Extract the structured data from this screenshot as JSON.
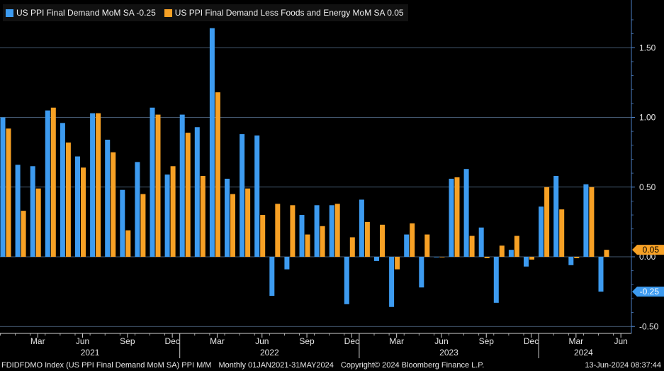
{
  "legend": {
    "series1": "US PPI Final Demand MoM SA -0.25",
    "series2": "US PPI Final Demand Less Foods and Energy MoM SA 0.05"
  },
  "footer": {
    "ticker": "FDIDFDMO Index (US PPI Final Demand MoM SA) PPI M/M",
    "range": "Monthly 01JAN2021-31MAY2024",
    "copyright": "Copyright© 2024 Bloomberg Finance L.P.",
    "date": "13-Jun-2024 08:37:44"
  },
  "colors": {
    "series1": "#3d9bf0",
    "series2": "#f7a125",
    "background": "#000000",
    "grid": "#6b8bb0",
    "axis": "#4c7fc4"
  },
  "chart_data": {
    "type": "bar",
    "x": [
      "Jan 2021",
      "Feb 2021",
      "Mar 2021",
      "Apr 2021",
      "May 2021",
      "Jun 2021",
      "Jul 2021",
      "Aug 2021",
      "Sep 2021",
      "Oct 2021",
      "Nov 2021",
      "Dec 2021",
      "Jan 2022",
      "Feb 2022",
      "Mar 2022",
      "Apr 2022",
      "May 2022",
      "Jun 2022",
      "Jul 2022",
      "Aug 2022",
      "Sep 2022",
      "Oct 2022",
      "Nov 2022",
      "Dec 2022",
      "Jan 2023",
      "Feb 2023",
      "Mar 2023",
      "Apr 2023",
      "May 2023",
      "Jun 2023",
      "Jul 2023",
      "Aug 2023",
      "Sep 2023",
      "Oct 2023",
      "Nov 2023",
      "Dec 2023",
      "Jan 2024",
      "Feb 2024",
      "Mar 2024",
      "Apr 2024",
      "May 2024"
    ],
    "series": [
      {
        "name": "US PPI Final Demand MoM SA",
        "last": "-0.25",
        "values": [
          1.0,
          0.66,
          0.65,
          1.05,
          0.96,
          0.72,
          1.03,
          0.84,
          0.48,
          0.68,
          1.07,
          0.59,
          1.02,
          0.93,
          1.64,
          0.56,
          0.88,
          0.87,
          -0.28,
          -0.09,
          0.3,
          0.37,
          0.37,
          -0.34,
          0.41,
          -0.03,
          -0.36,
          0.16,
          -0.22,
          0.0,
          0.56,
          0.63,
          0.21,
          -0.33,
          0.05,
          -0.07,
          0.36,
          0.58,
          -0.06,
          0.52,
          -0.25
        ]
      },
      {
        "name": "US PPI Final Demand Less Foods and Energy MoM SA",
        "last": "0.05",
        "values": [
          0.92,
          0.33,
          0.49,
          1.07,
          0.82,
          0.64,
          1.03,
          0.75,
          0.19,
          0.45,
          1.02,
          0.65,
          0.89,
          0.58,
          1.18,
          0.45,
          0.49,
          0.3,
          0.38,
          0.37,
          0.16,
          0.22,
          0.38,
          0.14,
          0.25,
          0.23,
          -0.09,
          0.24,
          0.16,
          0.0,
          0.57,
          0.15,
          -0.01,
          0.08,
          0.15,
          -0.02,
          0.5,
          0.34,
          -0.01,
          0.5,
          0.05
        ]
      }
    ],
    "y_ticks": [
      "1.50",
      "1.00",
      "0.50",
      "0.00",
      "-0.50"
    ],
    "y_tick_values": [
      1.5,
      1.0,
      0.5,
      0.0,
      -0.5
    ],
    "ylim": [
      -0.53,
      1.8
    ],
    "x_month_labels": [
      {
        "label": "Mar",
        "index": 2
      },
      {
        "label": "Jun",
        "index": 5
      },
      {
        "label": "Sep",
        "index": 8
      },
      {
        "label": "Dec",
        "index": 11
      },
      {
        "label": "Mar",
        "index": 14
      },
      {
        "label": "Jun",
        "index": 17
      },
      {
        "label": "Sep",
        "index": 20
      },
      {
        "label": "Dec",
        "index": 23
      },
      {
        "label": "Mar",
        "index": 26
      },
      {
        "label": "Jun",
        "index": 29
      },
      {
        "label": "Sep",
        "index": 32
      },
      {
        "label": "Dec",
        "index": 35
      },
      {
        "label": "Mar",
        "index": 38
      },
      {
        "label": "Jun",
        "index": 41
      }
    ],
    "x_year_labels": [
      {
        "label": "2021",
        "start": 0,
        "end": 12
      },
      {
        "label": "2022",
        "start": 12,
        "end": 24
      },
      {
        "label": "2023",
        "start": 24,
        "end": 36
      },
      {
        "label": "2024",
        "start": 36,
        "end": 42
      }
    ],
    "last_value_tags": [
      {
        "label": "0.05",
        "value": 0.05,
        "series": 1
      },
      {
        "label": "-0.25",
        "value": -0.25,
        "series": 0
      }
    ],
    "axis_position": "right"
  }
}
